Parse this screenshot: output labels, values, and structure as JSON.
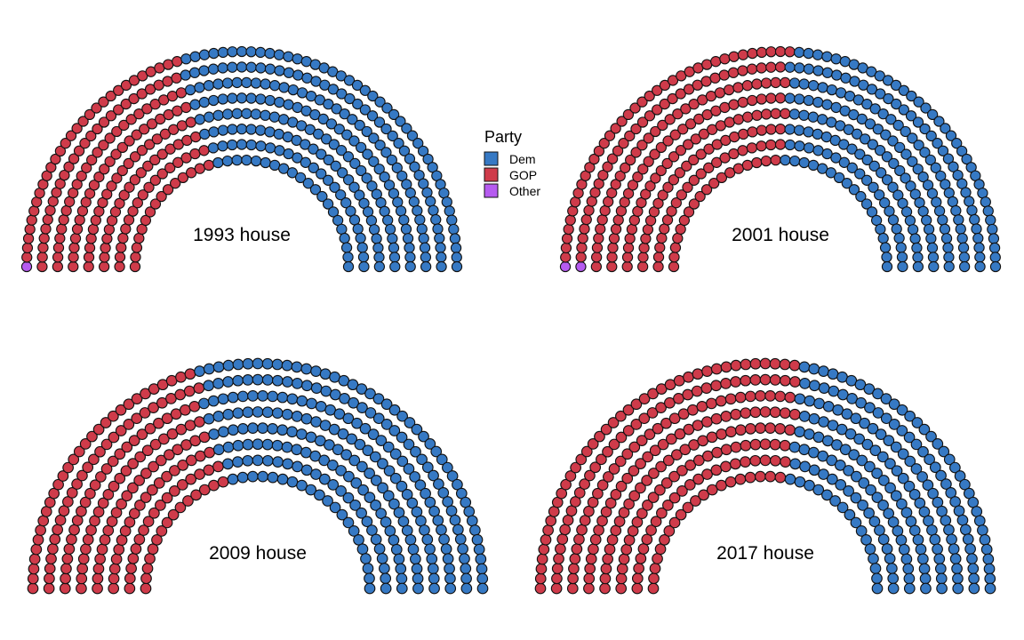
{
  "chart_data": [
    {
      "type": "parliament",
      "title": "1993 house",
      "total_seats": 435,
      "rows": 8,
      "seats": [
        {
          "party": "Other",
          "count": 1
        },
        {
          "party": "GOP",
          "count": 176
        },
        {
          "party": "Dem",
          "count": 258
        }
      ]
    },
    {
      "type": "parliament",
      "title": "2001 house",
      "total_seats": 435,
      "rows": 8,
      "seats": [
        {
          "party": "Other",
          "count": 2
        },
        {
          "party": "GOP",
          "count": 221
        },
        {
          "party": "Dem",
          "count": 212
        }
      ]
    },
    {
      "type": "parliament",
      "title": "2009 house",
      "total_seats": 435,
      "rows": 8,
      "seats": [
        {
          "party": "GOP",
          "count": 178
        },
        {
          "party": "Dem",
          "count": 257
        }
      ]
    },
    {
      "type": "parliament",
      "title": "2017 house",
      "total_seats": 435,
      "rows": 8,
      "seats": [
        {
          "party": "GOP",
          "count": 241
        },
        {
          "party": "Dem",
          "count": 194
        }
      ]
    }
  ],
  "legend": {
    "title": "Party",
    "items": [
      {
        "label": "Dem",
        "color": "#3679c4"
      },
      {
        "label": "GOP",
        "color": "#cf3b4a"
      },
      {
        "label": "Other",
        "color": "#b65bf0"
      }
    ]
  },
  "colors": {
    "Dem": "#3679c4",
    "GOP": "#cf3b4a",
    "Other": "#b65bf0"
  }
}
